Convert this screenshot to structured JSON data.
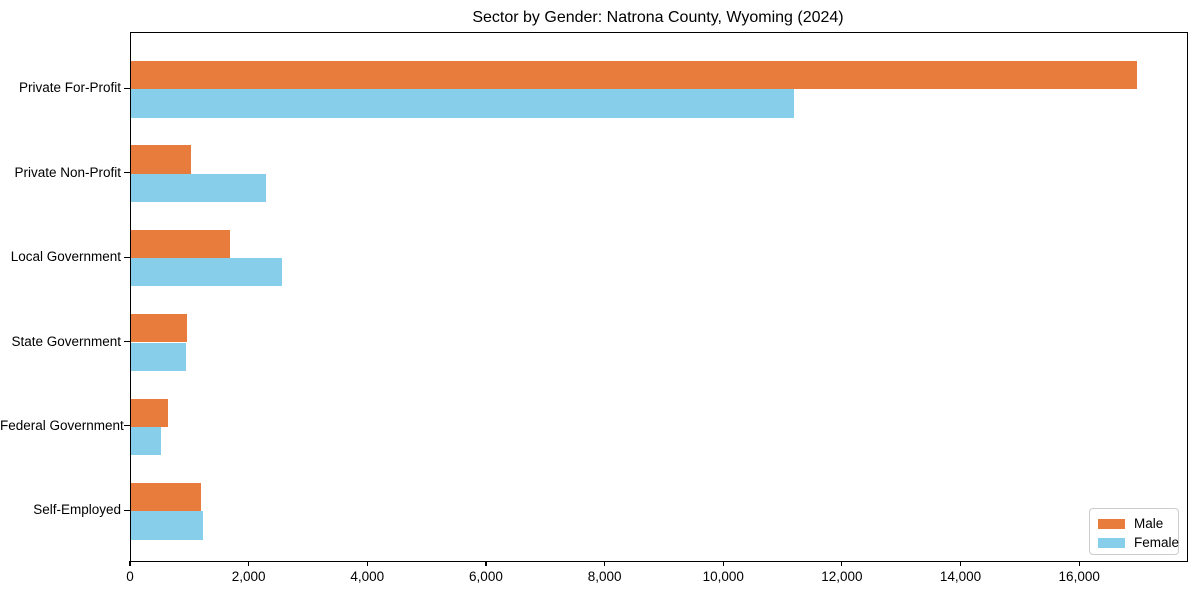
{
  "chart_data": {
    "type": "bar",
    "orientation": "horizontal",
    "title": "Sector by Gender: Natrona County, Wyoming (2024)",
    "categories": [
      "Private For-Profit",
      "Private Non-Profit",
      "Local Government",
      "State Government",
      "Federal Government",
      "Self-Employed"
    ],
    "series": [
      {
        "name": "Male",
        "color": "#e87c3c",
        "values": [
          16950,
          1010,
          1670,
          940,
          620,
          1180
        ]
      },
      {
        "name": "Female",
        "color": "#87ceeb",
        "values": [
          11180,
          2280,
          2540,
          920,
          500,
          1220
        ]
      }
    ],
    "xlabel": "",
    "ylabel": "",
    "xlim": [
      0,
      17800
    ],
    "xticks": [
      0,
      2000,
      4000,
      6000,
      8000,
      10000,
      12000,
      14000,
      16000
    ],
    "xtick_labels": [
      "0",
      "2,000",
      "4,000",
      "6,000",
      "8,000",
      "10,000",
      "12,000",
      "14,000",
      "16,000"
    ],
    "grid": false,
    "legend_position": "lower right"
  }
}
